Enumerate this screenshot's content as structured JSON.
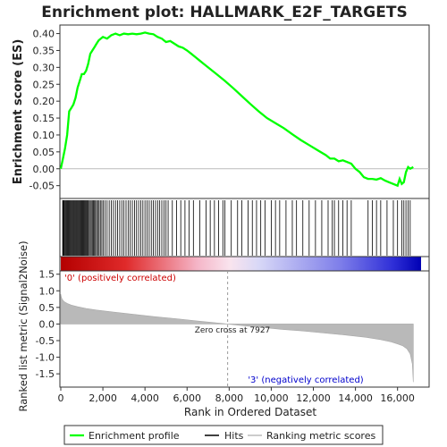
{
  "chart_data": {
    "type": "line",
    "title": "Enrichment plot: HALLMARK_E2F_TARGETS",
    "xlabel": "Rank in Ordered Dataset",
    "xlim": [
      0,
      17500
    ],
    "x_ticks": [
      "0",
      "2,000",
      "4,000",
      "6,000",
      "8,000",
      "10,000",
      "12,000",
      "14,000",
      "16,000"
    ],
    "x_tick_values": [
      0,
      2000,
      4000,
      6000,
      8000,
      10000,
      12000,
      14000,
      16000
    ],
    "top_panel": {
      "ylabel": "Enrichment score (ES)",
      "ylim": [
        -0.08,
        0.42
      ],
      "y_ticks": [
        "0.40",
        "0.35",
        "0.30",
        "0.25",
        "0.20",
        "0.15",
        "0.10",
        "0.05",
        "0.00",
        "-0.05"
      ],
      "y_tick_values": [
        0.4,
        0.35,
        0.3,
        0.25,
        0.2,
        0.15,
        0.1,
        0.05,
        0.0,
        -0.05
      ],
      "series": [
        {
          "name": "Enrichment profile",
          "color": "#00ff00",
          "x": [
            0,
            100,
            200,
            300,
            400,
            500,
            600,
            700,
            800,
            900,
            1000,
            1100,
            1200,
            1300,
            1400,
            1500,
            1600,
            1700,
            1800,
            1900,
            2000,
            2200,
            2400,
            2600,
            2800,
            3000,
            3200,
            3400,
            3600,
            3800,
            4000,
            4200,
            4400,
            4600,
            4800,
            5000,
            5200,
            5400,
            5600,
            5800,
            6000,
            6200,
            6400,
            6600,
            6800,
            7000,
            7400,
            7800,
            8200,
            8600,
            9000,
            9400,
            9800,
            10200,
            10600,
            11000,
            11400,
            11800,
            12200,
            12600,
            12800,
            13000,
            13200,
            13400,
            13600,
            13800,
            14000,
            14200,
            14400,
            14600,
            14800,
            15000,
            15200,
            15400,
            15600,
            15800,
            16000,
            16100,
            16200,
            16300,
            16400,
            16500,
            16600,
            16750
          ],
          "y": [
            0.0,
            0.03,
            0.06,
            0.1,
            0.17,
            0.18,
            0.19,
            0.21,
            0.24,
            0.26,
            0.28,
            0.28,
            0.29,
            0.31,
            0.34,
            0.35,
            0.36,
            0.37,
            0.38,
            0.385,
            0.39,
            0.385,
            0.395,
            0.4,
            0.395,
            0.4,
            0.398,
            0.4,
            0.398,
            0.4,
            0.403,
            0.4,
            0.398,
            0.39,
            0.385,
            0.375,
            0.378,
            0.37,
            0.362,
            0.358,
            0.35,
            0.34,
            0.33,
            0.32,
            0.31,
            0.3,
            0.28,
            0.26,
            0.238,
            0.215,
            0.192,
            0.17,
            0.15,
            0.135,
            0.12,
            0.102,
            0.085,
            0.07,
            0.055,
            0.04,
            0.03,
            0.03,
            0.022,
            0.025,
            0.02,
            0.015,
            0.0,
            -0.01,
            -0.025,
            -0.03,
            -0.03,
            -0.032,
            -0.028,
            -0.035,
            -0.04,
            -0.045,
            -0.05,
            -0.03,
            -0.045,
            -0.04,
            -0.01,
            0.005,
            0.0,
            0.005
          ]
        }
      ]
    },
    "hits_panel": {
      "legend_name": "Hits",
      "hit_ranks": [
        90,
        120,
        150,
        180,
        220,
        260,
        300,
        340,
        380,
        420,
        460,
        500,
        540,
        580,
        620,
        660,
        700,
        740,
        780,
        820,
        860,
        900,
        940,
        980,
        1020,
        1060,
        1100,
        1140,
        1180,
        1220,
        1260,
        1300,
        1350,
        1400,
        1450,
        1500,
        1550,
        1600,
        1650,
        1700,
        1760,
        1820,
        1880,
        1950,
        2020,
        2100,
        2200,
        2300,
        2400,
        2500,
        2600,
        2700,
        2800,
        2900,
        3000,
        3100,
        3200,
        3300,
        3400,
        3500,
        3600,
        3700,
        3800,
        3900,
        4000,
        4100,
        4200,
        4300,
        4400,
        4500,
        4600,
        4700,
        4800,
        4900,
        5000,
        5100,
        5300,
        5500,
        5700,
        5900,
        6100,
        6300,
        6600,
        6900,
        7100,
        7300,
        7500,
        7700,
        7800,
        8100,
        8400,
        8600,
        8900,
        9100,
        9300,
        9500,
        9700,
        10000,
        10200,
        10400,
        10700,
        11000,
        11200,
        11500,
        11800,
        12100,
        12400,
        12700,
        12900,
        13000,
        13200,
        13400,
        13600,
        13800,
        14600,
        14800,
        15000,
        15200,
        15500,
        15800,
        16000,
        16200,
        16300,
        16400,
        16500,
        16600
      ]
    },
    "ranking_panel": {
      "ylabel": "Ranked list metric (Signal2Noise)",
      "legend_name": "Ranking metric scores",
      "ylim": [
        -1.9,
        1.6
      ],
      "y_ticks": [
        "1.5",
        "1.0",
        "0.5",
        "0.0",
        "-0.5",
        "-1.0",
        "-1.5"
      ],
      "y_tick_values": [
        1.5,
        1.0,
        0.5,
        0.0,
        -0.5,
        -1.0,
        -1.5
      ],
      "x": [
        0,
        20,
        60,
        150,
        300,
        500,
        800,
        1200,
        1700,
        2500,
        3500,
        4500,
        5500,
        6500,
        7300,
        7927,
        8500,
        9500,
        10500,
        11500,
        12500,
        13500,
        14500,
        15200,
        15700,
        16000,
        16250,
        16450,
        16600,
        16700,
        16750
      ],
      "values": [
        0.9,
        0.82,
        0.75,
        0.68,
        0.62,
        0.57,
        0.52,
        0.47,
        0.42,
        0.36,
        0.29,
        0.22,
        0.16,
        0.09,
        0.04,
        0.0,
        -0.04,
        -0.1,
        -0.16,
        -0.21,
        -0.27,
        -0.33,
        -0.4,
        -0.47,
        -0.54,
        -0.6,
        -0.66,
        -0.75,
        -0.9,
        -1.2,
        -1.75
      ],
      "zero_cross_label": "Zero cross at 7927",
      "zero_cross": 7927,
      "positive_label": "'0' (positively correlated)",
      "negative_label": "'3' (negatively correlated)",
      "positive_color": "#cc0000",
      "negative_color": "#0000cc"
    },
    "legend": {
      "placement": "bottom",
      "entries": [
        "Enrichment profile",
        "Hits",
        "Ranking metric scores"
      ]
    }
  }
}
